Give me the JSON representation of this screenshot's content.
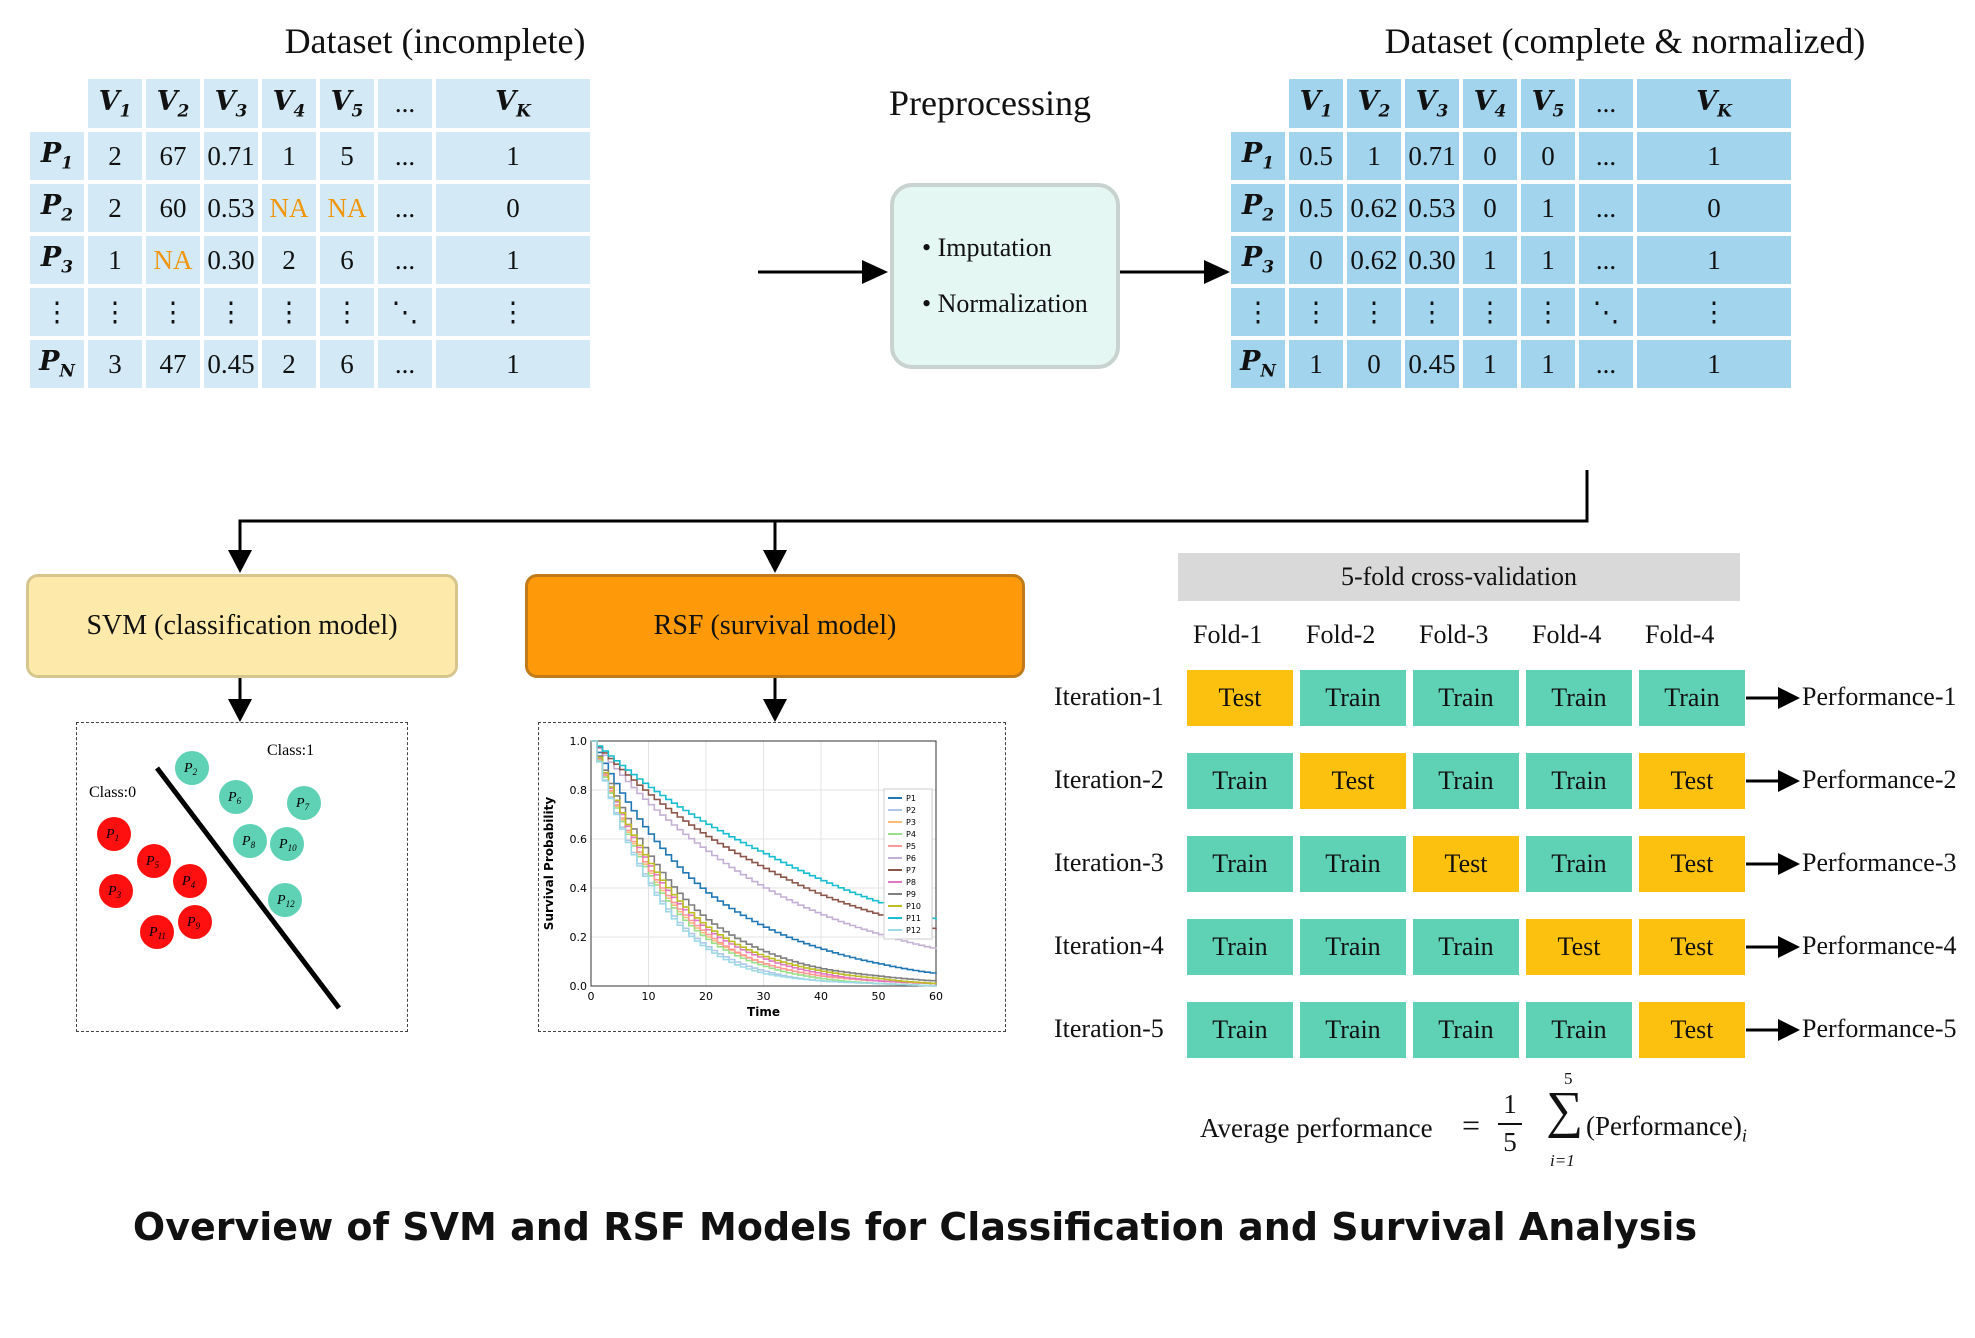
{
  "left_table": {
    "title": "Dataset (incomplete)",
    "headers": [
      "",
      "V₁",
      "V₂",
      "V₃",
      "V₄",
      "V₅",
      "...",
      "V_K"
    ],
    "rows": [
      [
        "P₁",
        "2",
        "67",
        "0.71",
        "1",
        "5",
        "...",
        "1"
      ],
      [
        "P₂",
        "2",
        "60",
        "0.53",
        "NA",
        "NA",
        "...",
        "0"
      ],
      [
        "P₃",
        "1",
        "NA",
        "0.30",
        "2",
        "6",
        "...",
        "1"
      ],
      [
        "⋮",
        "⋮",
        "⋮",
        "⋮",
        "⋮",
        "⋮",
        "⋱",
        "⋮"
      ],
      [
        "P_N",
        "3",
        "47",
        "0.45",
        "2",
        "6",
        "...",
        "1"
      ]
    ],
    "header_color": "#d3e9f6",
    "cell_color": "#d3e9f6",
    "na_color": "#f0960a"
  },
  "right_table": {
    "title": "Dataset (complete & normalized)",
    "headers": [
      "",
      "V₁",
      "V₂",
      "V₃",
      "V₄",
      "V₅",
      "...",
      "V_K"
    ],
    "rows": [
      [
        "P₁",
        "0.5",
        "1",
        "0.71",
        "0",
        "0",
        "...",
        "1"
      ],
      [
        "P₂",
        "0.5",
        "0.62",
        "0.53",
        "0",
        "1",
        "...",
        "0"
      ],
      [
        "P₃",
        "0",
        "0.62",
        "0.30",
        "1",
        "1",
        "...",
        "1"
      ],
      [
        "⋮",
        "⋮",
        "⋮",
        "⋮",
        "⋮",
        "⋮",
        "⋱",
        "⋮"
      ],
      [
        "P_N",
        "1",
        "0",
        "0.45",
        "1",
        "1",
        "...",
        "1"
      ]
    ],
    "cell_color": "#a3d4ee"
  },
  "preprocessing": {
    "title": "Preprocessing",
    "items": [
      "Imputation",
      "Normalization"
    ],
    "box_color": "#e4f7f2"
  },
  "svm": {
    "label": "SVM (classification model)",
    "box_color": "#fde9a9",
    "class0_label": "Class:0",
    "class1_label": "Class:1",
    "class0_points": [
      "P1",
      "P3",
      "P4",
      "P5",
      "P9",
      "P11"
    ],
    "class1_points": [
      "P2",
      "P6",
      "P7",
      "P8",
      "P10",
      "P12"
    ],
    "class0_color": "#ff1010",
    "class1_color": "#5fd1b5"
  },
  "rsf": {
    "label": "RSF (survival model)",
    "box_color": "#fe9a0a"
  },
  "chart_data": {
    "type": "line",
    "xlabel": "Time",
    "ylabel": "Survival Probability",
    "xlim": [
      0,
      60
    ],
    "ylim": [
      0,
      1.0
    ],
    "xticks": [
      "0",
      "10",
      "20",
      "30",
      "40",
      "50",
      "60"
    ],
    "yticks": [
      "0.0",
      "0.2",
      "0.4",
      "0.6",
      "0.8",
      "1.0"
    ],
    "grid": true,
    "legend": "right",
    "x": [
      0,
      10,
      20,
      30,
      40,
      50,
      60
    ],
    "series": [
      {
        "name": "P1",
        "color": "#1f77b4",
        "values": [
          1.0,
          0.62,
          0.38,
          0.24,
          0.15,
          0.09,
          0.05
        ]
      },
      {
        "name": "P2",
        "color": "#aec7e8",
        "values": [
          1.0,
          0.42,
          0.16,
          0.06,
          0.02,
          0.01,
          0.0
        ]
      },
      {
        "name": "P3",
        "color": "#ffbb78",
        "values": [
          1.0,
          0.46,
          0.2,
          0.09,
          0.04,
          0.02,
          0.01
        ]
      },
      {
        "name": "P4",
        "color": "#98df8a",
        "values": [
          1.0,
          0.45,
          0.19,
          0.08,
          0.03,
          0.01,
          0.0
        ]
      },
      {
        "name": "P5",
        "color": "#ff9896",
        "values": [
          1.0,
          0.47,
          0.21,
          0.09,
          0.04,
          0.02,
          0.01
        ]
      },
      {
        "name": "P6",
        "color": "#c5b0d5",
        "values": [
          1.0,
          0.74,
          0.55,
          0.4,
          0.29,
          0.21,
          0.15
        ]
      },
      {
        "name": "P7",
        "color": "#8c564b",
        "values": [
          1.0,
          0.78,
          0.61,
          0.48,
          0.37,
          0.29,
          0.23
        ]
      },
      {
        "name": "P8",
        "color": "#e377c2",
        "values": [
          1.0,
          0.49,
          0.23,
          0.11,
          0.05,
          0.02,
          0.01
        ]
      },
      {
        "name": "P9",
        "color": "#7f7f7f",
        "values": [
          1.0,
          0.53,
          0.27,
          0.14,
          0.07,
          0.04,
          0.02
        ]
      },
      {
        "name": "P10",
        "color": "#bcbd22",
        "values": [
          1.0,
          0.5,
          0.24,
          0.12,
          0.06,
          0.03,
          0.01
        ]
      },
      {
        "name": "P11",
        "color": "#17becf",
        "values": [
          1.0,
          0.81,
          0.66,
          0.54,
          0.43,
          0.34,
          0.27
        ]
      },
      {
        "name": "P12",
        "color": "#9edae5",
        "values": [
          1.0,
          0.41,
          0.15,
          0.05,
          0.02,
          0.01,
          0.0
        ]
      }
    ]
  },
  "cross_validation": {
    "title": "5-fold cross-validation",
    "folds": [
      "Fold-1",
      "Fold-2",
      "Fold-3",
      "Fold-4",
      "Fold-4"
    ],
    "iterations": [
      {
        "label": "Iteration-1",
        "cells": [
          "Test",
          "Train",
          "Train",
          "Train",
          "Train"
        ],
        "performance": "Performance-1"
      },
      {
        "label": "Iteration-2",
        "cells": [
          "Train",
          "Test",
          "Train",
          "Train",
          "Test"
        ],
        "performance": "Performance-2"
      },
      {
        "label": "Iteration-3",
        "cells": [
          "Train",
          "Train",
          "Test",
          "Train",
          "Test"
        ],
        "performance": "Performance-3"
      },
      {
        "label": "Iteration-4",
        "cells": [
          "Train",
          "Train",
          "Train",
          "Test",
          "Test"
        ],
        "performance": "Performance-4"
      },
      {
        "label": "Iteration-5",
        "cells": [
          "Train",
          "Train",
          "Train",
          "Train",
          "Test"
        ],
        "performance": "Performance-5"
      }
    ],
    "train_color": "#5fd1b5",
    "test_color": "#fcc00f",
    "header_color": "#d9d9d9",
    "average": {
      "label": "Average performance",
      "equals": "=",
      "numerator": "1",
      "denominator": "5",
      "sum_top": "5",
      "sum_bottom": "i=1",
      "term": "(Performance)",
      "subscript": "i"
    }
  },
  "caption": "Overview of SVM and RSF Models for Classification and Survival Analysis"
}
